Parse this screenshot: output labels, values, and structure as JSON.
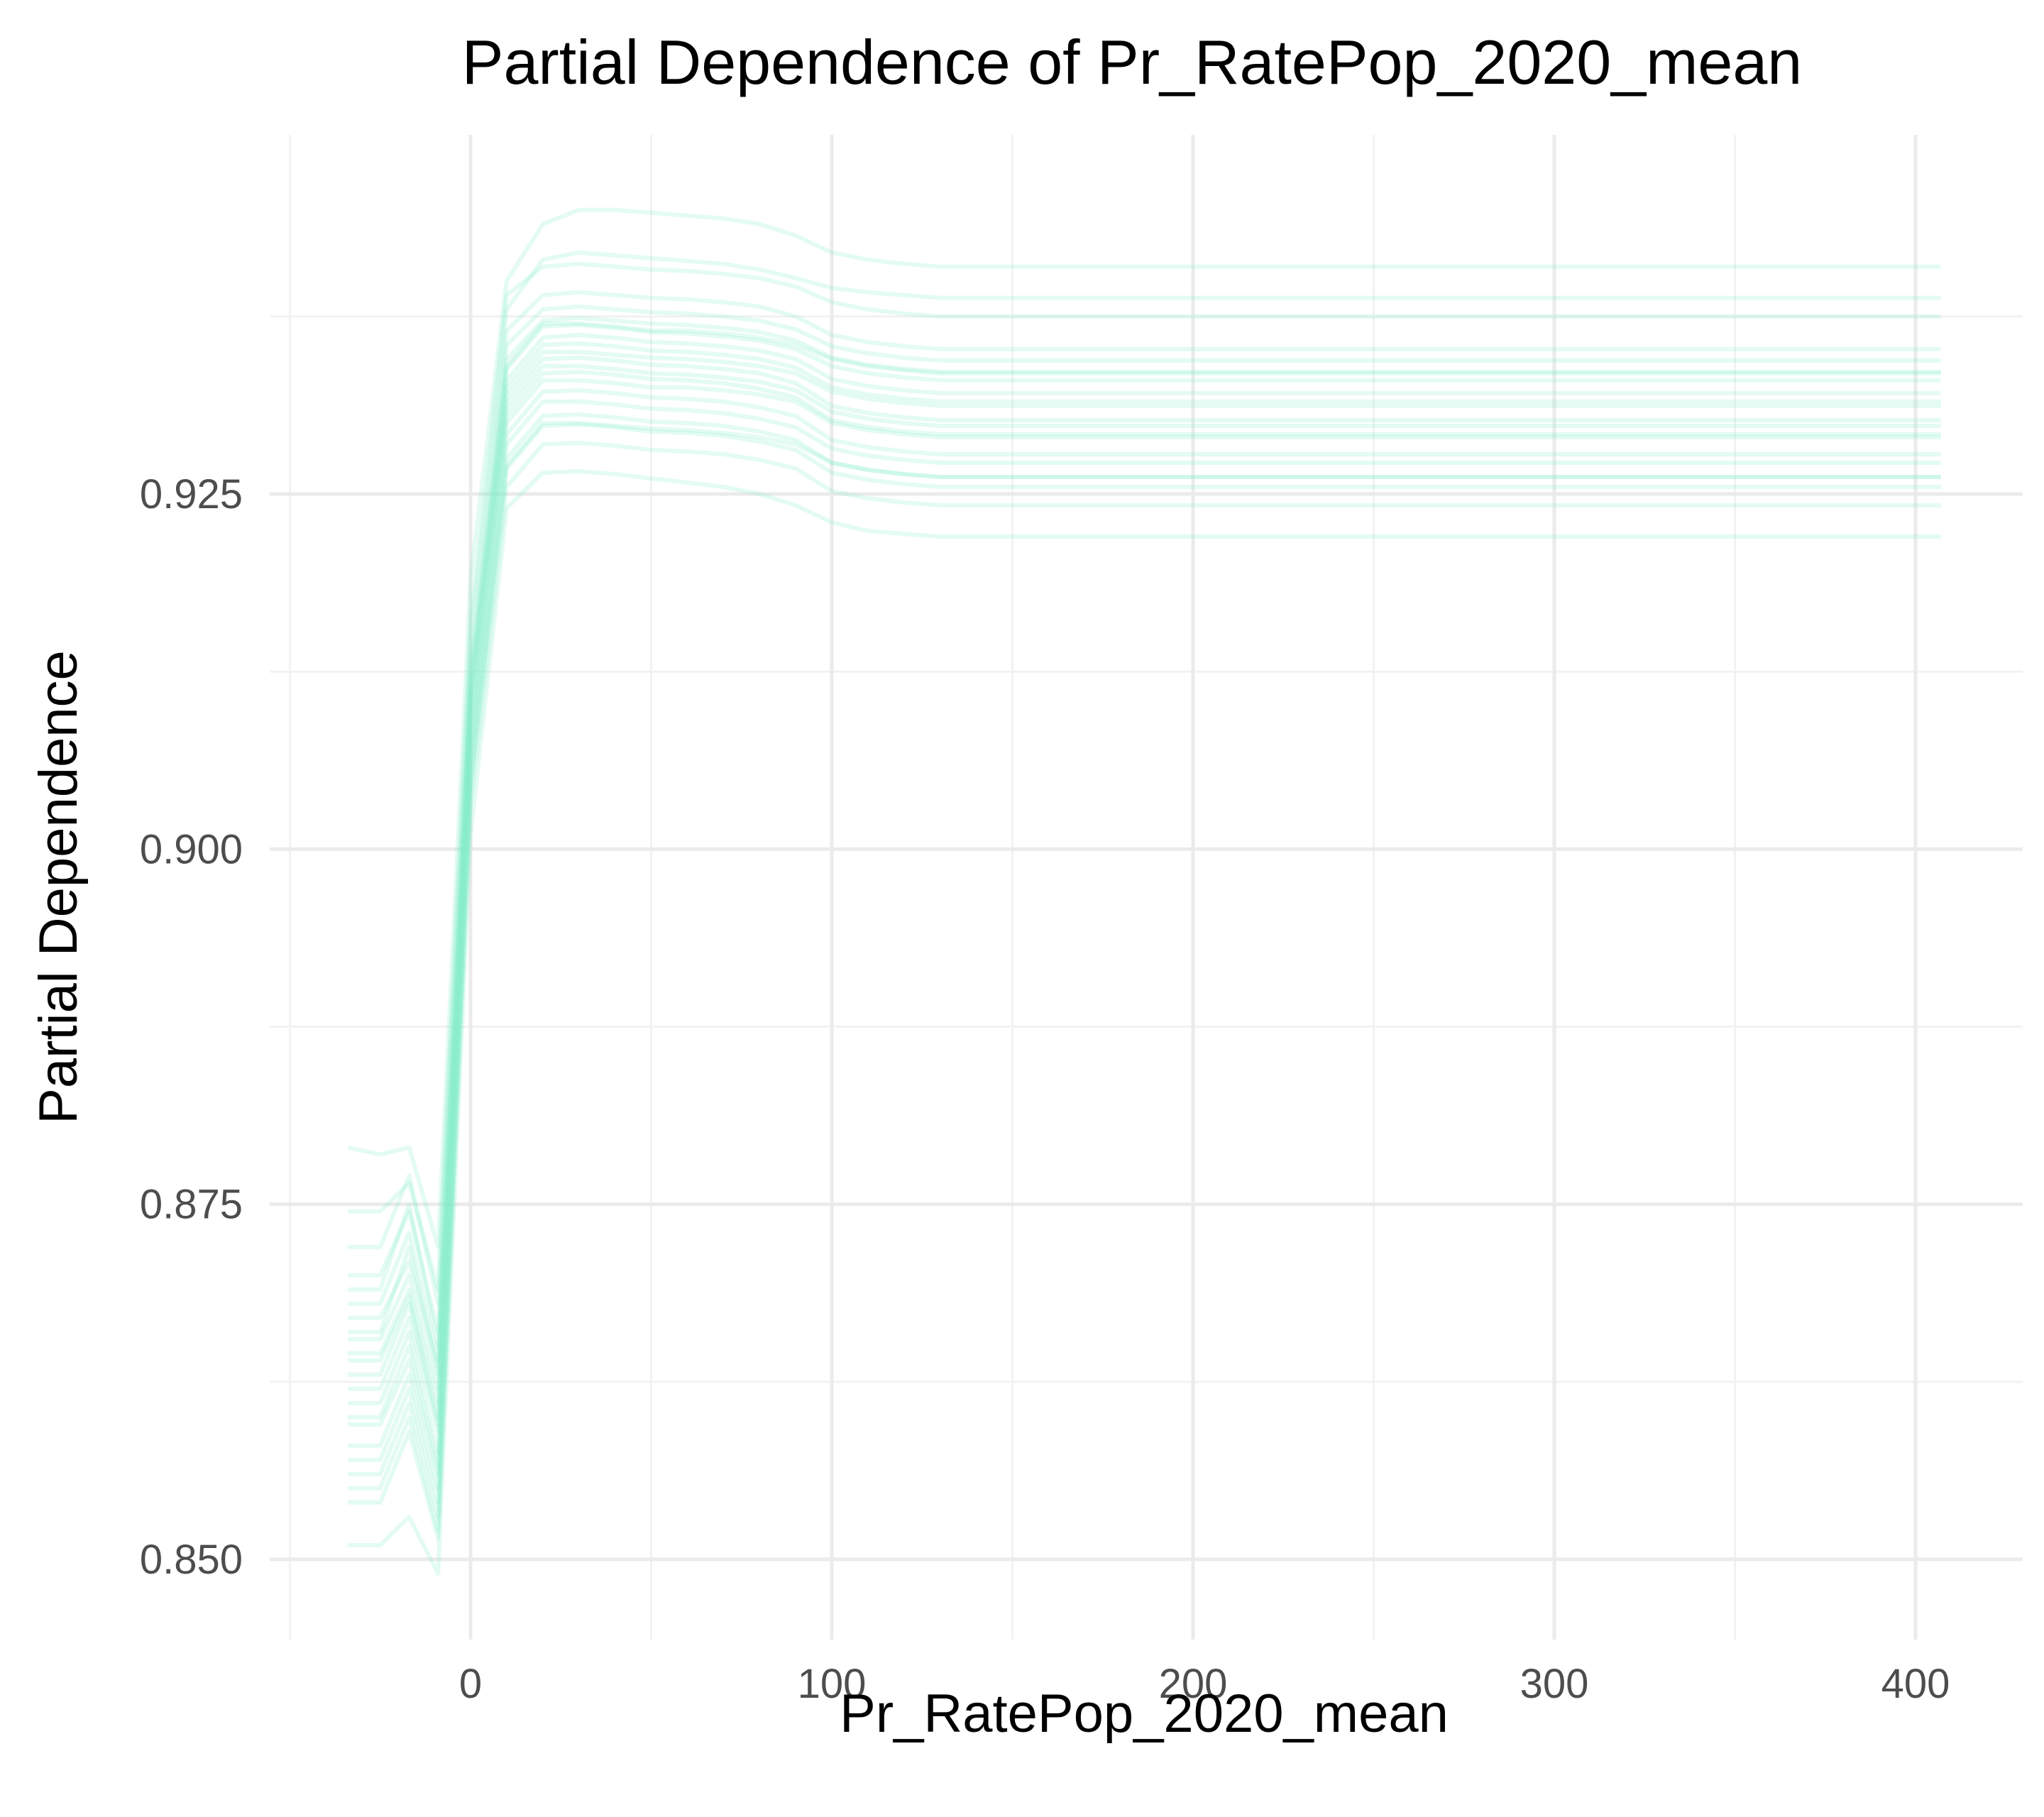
{
  "chart_data": {
    "type": "line",
    "title": "Partial Dependence of Pr_RatePop_2020_mean",
    "xlabel": "Pr_RatePop_2020_mean",
    "ylabel": "Partial Dependence",
    "xlim": [
      -50,
      420
    ],
    "ylim": [
      0.845,
      0.947
    ],
    "x_ticks": [
      0,
      100,
      200,
      300,
      400
    ],
    "x_tick_labels": [
      "0",
      "100",
      "200",
      "300",
      "400"
    ],
    "y_ticks": [
      0.85,
      0.875,
      0.9,
      0.925
    ],
    "y_tick_labels": [
      "0.850",
      "0.875",
      "0.900",
      "0.925"
    ],
    "grid": true,
    "legend": "none",
    "line_color": "#7eeec9",
    "x": [
      -34,
      -25,
      -17,
      -9,
      0,
      10,
      20,
      30,
      40,
      50,
      60,
      70,
      80,
      90,
      100,
      110,
      120,
      130,
      150,
      200,
      250,
      300,
      350,
      407
    ],
    "series": [
      {
        "values": [
          0.8645,
          0.8645,
          0.869,
          0.861,
          0.91,
          0.934,
          0.937,
          0.937,
          0.9368,
          0.9365,
          0.9365,
          0.9363,
          0.936,
          0.9355,
          0.9345,
          0.934,
          0.9337,
          0.9335,
          0.9335,
          0.9335,
          0.9335,
          0.9335,
          0.9335,
          0.9335
        ]
      },
      {
        "values": [
          0.86,
          0.86,
          0.865,
          0.8565,
          0.907,
          0.93,
          0.933,
          0.933,
          0.9328,
          0.9325,
          0.9325,
          0.9323,
          0.932,
          0.9315,
          0.93,
          0.9295,
          0.9292,
          0.929,
          0.929,
          0.929,
          0.929,
          0.929,
          0.929,
          0.929
        ]
      },
      {
        "values": [
          0.87,
          0.87,
          0.8745,
          0.866,
          0.913,
          0.9365,
          0.939,
          0.9392,
          0.939,
          0.9388,
          0.9387,
          0.9385,
          0.9382,
          0.9375,
          0.9362,
          0.9357,
          0.9354,
          0.9352,
          0.9352,
          0.9352,
          0.9352,
          0.9352,
          0.9352,
          0.9352
        ]
      },
      {
        "values": [
          0.855,
          0.855,
          0.86,
          0.852,
          0.904,
          0.927,
          0.93,
          0.93,
          0.9298,
          0.9296,
          0.9295,
          0.9293,
          0.929,
          0.9285,
          0.9272,
          0.9267,
          0.9264,
          0.9262,
          0.9262,
          0.9262,
          0.9262,
          0.9262,
          0.9262,
          0.9262
        ]
      },
      {
        "values": [
          0.866,
          0.866,
          0.872,
          0.863,
          0.911,
          0.932,
          0.935,
          0.935,
          0.9348,
          0.9346,
          0.9345,
          0.9343,
          0.934,
          0.9335,
          0.9322,
          0.9317,
          0.9314,
          0.9312,
          0.9312,
          0.9312,
          0.9312,
          0.9312,
          0.9312,
          0.9312
        ]
      },
      {
        "values": [
          0.862,
          0.862,
          0.867,
          0.859,
          0.909,
          0.931,
          0.934,
          0.934,
          0.9338,
          0.9335,
          0.9334,
          0.9332,
          0.9329,
          0.9323,
          0.9308,
          0.9303,
          0.93,
          0.9298,
          0.9298,
          0.9298,
          0.9298,
          0.9298,
          0.9298,
          0.9298
        ]
      },
      {
        "values": [
          0.858,
          0.858,
          0.863,
          0.855,
          0.906,
          0.9285,
          0.9315,
          0.9315,
          0.9313,
          0.931,
          0.9309,
          0.9307,
          0.9303,
          0.9297,
          0.9282,
          0.9277,
          0.9274,
          0.9272,
          0.9272,
          0.9272,
          0.9272,
          0.9272,
          0.9272,
          0.9272
        ]
      },
      {
        "values": [
          0.8745,
          0.8745,
          0.8765,
          0.869,
          0.916,
          0.939,
          0.941,
          0.9412,
          0.941,
          0.9408,
          0.9407,
          0.9405,
          0.9402,
          0.9396,
          0.9385,
          0.938,
          0.9377,
          0.9375,
          0.9375,
          0.9375,
          0.9375,
          0.9375,
          0.9375,
          0.9375
        ]
      },
      {
        "values": [
          0.868,
          0.868,
          0.873,
          0.864,
          0.912,
          0.9345,
          0.9372,
          0.9374,
          0.9372,
          0.937,
          0.9369,
          0.9367,
          0.9364,
          0.9358,
          0.9346,
          0.9341,
          0.9338,
          0.9336,
          0.9336,
          0.9336,
          0.9336,
          0.9336,
          0.9336,
          0.9336
        ]
      },
      {
        "values": [
          0.864,
          0.864,
          0.8685,
          0.86,
          0.9095,
          0.9325,
          0.9355,
          0.9356,
          0.9354,
          0.9351,
          0.935,
          0.9348,
          0.9345,
          0.9339,
          0.9325,
          0.932,
          0.9317,
          0.9315,
          0.9315,
          0.9315,
          0.9315,
          0.9315,
          0.9315,
          0.9315
        ]
      },
      {
        "values": [
          0.861,
          0.861,
          0.866,
          0.8575,
          0.9075,
          0.9305,
          0.9335,
          0.9336,
          0.9334,
          0.9331,
          0.933,
          0.9328,
          0.9324,
          0.9318,
          0.9302,
          0.9297,
          0.9294,
          0.9292,
          0.9292,
          0.9292,
          0.9292,
          0.9292,
          0.9292,
          0.9292
        ]
      },
      {
        "values": [
          0.857,
          0.857,
          0.862,
          0.854,
          0.905,
          0.9275,
          0.9305,
          0.9306,
          0.9304,
          0.9301,
          0.93,
          0.9298,
          0.9294,
          0.9288,
          0.9272,
          0.9267,
          0.9264,
          0.9262,
          0.9262,
          0.9262,
          0.9262,
          0.9262,
          0.9262,
          0.9262
        ]
      },
      {
        "values": [
          0.854,
          0.854,
          0.859,
          0.8515,
          0.903,
          0.9255,
          0.9285,
          0.9286,
          0.9284,
          0.9281,
          0.928,
          0.9278,
          0.9274,
          0.9268,
          0.9252,
          0.9247,
          0.9244,
          0.9242,
          0.9242,
          0.9242,
          0.9242,
          0.9242,
          0.9242,
          0.9242
        ]
      },
      {
        "values": [
          0.851,
          0.851,
          0.853,
          0.849,
          0.901,
          0.924,
          0.9265,
          0.9266,
          0.9264,
          0.9261,
          0.9258,
          0.9255,
          0.925,
          0.9242,
          0.923,
          0.9224,
          0.9222,
          0.922,
          0.922,
          0.922,
          0.922,
          0.922,
          0.922,
          0.922
        ]
      },
      {
        "values": [
          0.879,
          0.8785,
          0.879,
          0.872,
          0.919,
          0.94,
          0.944,
          0.945,
          0.945,
          0.9448,
          0.9446,
          0.9444,
          0.944,
          0.9432,
          0.942,
          0.9415,
          0.9412,
          0.941,
          0.941,
          0.941,
          0.941,
          0.941,
          0.941,
          0.941
        ]
      },
      {
        "values": [
          0.872,
          0.872,
          0.877,
          0.868,
          0.915,
          0.938,
          0.9415,
          0.942,
          0.9418,
          0.9416,
          0.9414,
          0.9412,
          0.9408,
          0.9402,
          0.9395,
          0.9392,
          0.939,
          0.9388,
          0.9388,
          0.9388,
          0.9388,
          0.9388,
          0.9388,
          0.9388
        ]
      },
      {
        "values": [
          0.8655,
          0.8655,
          0.87,
          0.862,
          0.9105,
          0.933,
          0.936,
          0.9362,
          0.936,
          0.9357,
          0.9356,
          0.9354,
          0.9351,
          0.9345,
          0.9331,
          0.9326,
          0.9323,
          0.9321,
          0.9321,
          0.9321,
          0.9321,
          0.9321,
          0.9321,
          0.9321
        ]
      },
      {
        "values": [
          0.863,
          0.863,
          0.868,
          0.8595,
          0.9085,
          0.9315,
          0.9345,
          0.9346,
          0.9344,
          0.9341,
          0.934,
          0.9338,
          0.9335,
          0.9328,
          0.9312,
          0.9307,
          0.9304,
          0.9302,
          0.9302,
          0.9302,
          0.9302,
          0.9302,
          0.9302,
          0.9302
        ]
      },
      {
        "values": [
          0.8595,
          0.8595,
          0.864,
          0.856,
          0.9065,
          0.9292,
          0.9322,
          0.9323,
          0.9321,
          0.9318,
          0.9317,
          0.9315,
          0.9311,
          0.9305,
          0.9288,
          0.9283,
          0.928,
          0.9278,
          0.9278,
          0.9278,
          0.9278,
          0.9278,
          0.9278,
          0.9278
        ]
      },
      {
        "values": [
          0.869,
          0.869,
          0.875,
          0.865,
          0.9125,
          0.9355,
          0.938,
          0.9382,
          0.938,
          0.9378,
          0.9377,
          0.9375,
          0.9372,
          0.9366,
          0.9354,
          0.9349,
          0.9346,
          0.9344,
          0.9344,
          0.9344,
          0.9344,
          0.9344,
          0.9344,
          0.9344
        ]
      },
      {
        "values": [
          0.856,
          0.856,
          0.861,
          0.853,
          0.9045,
          0.9268,
          0.9298,
          0.9299,
          0.9297,
          0.9294,
          0.9293,
          0.9291,
          0.9287,
          0.9281,
          0.9265,
          0.926,
          0.9257,
          0.9255,
          0.9255,
          0.9255,
          0.9255,
          0.9255,
          0.9255,
          0.9255
        ]
      },
      {
        "values": [
          0.867,
          0.867,
          0.871,
          0.8635,
          0.9115,
          0.9338,
          0.9368,
          0.9369,
          0.9367,
          0.9364,
          0.9363,
          0.9361,
          0.9358,
          0.9352,
          0.934,
          0.9335,
          0.9332,
          0.933,
          0.933,
          0.933,
          0.933,
          0.933,
          0.933,
          0.933
        ]
      }
    ]
  }
}
